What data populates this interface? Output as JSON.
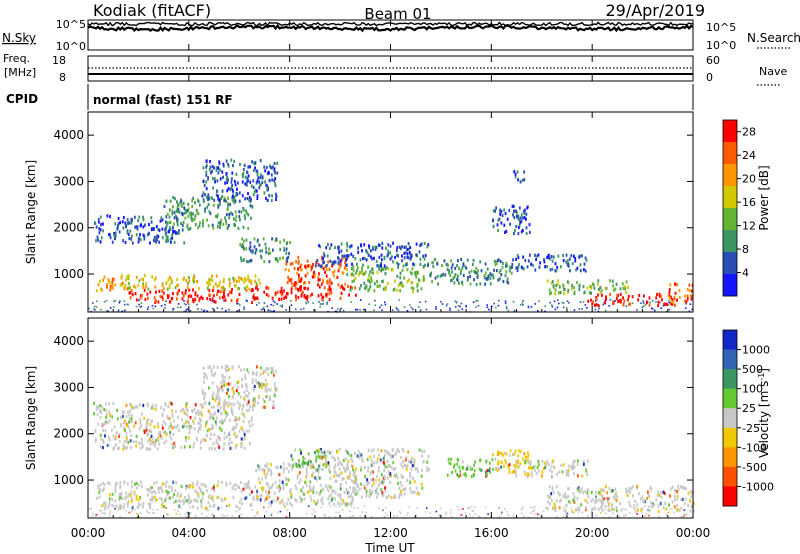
{
  "header": {
    "station": "Kodiak (fitACF)",
    "beam": "Beam 01",
    "date": "29/Apr/2019"
  },
  "strips": {
    "nsky": {
      "label": "N.Sky",
      "right_label": "N.Search",
      "left_ticks": [
        "10^5",
        "10^0"
      ],
      "right_ticks": [
        "10^5",
        "10^0"
      ]
    },
    "freq": {
      "label_line1": "Freq.",
      "label_line2": "[MHz]",
      "right_label": "Nave",
      "left_ticks": [
        "18",
        "8"
      ],
      "right_ticks": [
        "60",
        "0"
      ]
    },
    "cpid": {
      "label": "CPID",
      "text": "normal (fast) 151 RF"
    }
  },
  "chart_data": [
    {
      "type": "heatmap",
      "name": "power",
      "ylabel": "Slant Range [km]",
      "xlabel": "",
      "ylim": [
        180,
        4500
      ],
      "yticks": [
        1000,
        2000,
        3000,
        4000
      ],
      "xlim_hours": [
        0,
        24
      ],
      "xticks": [
        "00:00",
        "04:00",
        "08:00",
        "12:00",
        "16:00",
        "20:00",
        "00:00"
      ],
      "colorbar": {
        "label": "Power [dB]",
        "ticks": [
          "4",
          "8",
          "12",
          "16",
          "20",
          "24",
          "28"
        ],
        "range": [
          0,
          30
        ],
        "colors": [
          "#1414ff",
          "#2850b4",
          "#3c9664",
          "#64b432",
          "#d2c800",
          "#ff9600",
          "#ff5a00",
          "#ff0000"
        ]
      },
      "regions": [
        {
          "t0": 0.3,
          "t1": 1.7,
          "r0": 650,
          "r1": 1000,
          "level": 5
        },
        {
          "t0": 1.6,
          "t1": 6.6,
          "r0": 420,
          "r1": 700,
          "level": 7
        },
        {
          "t0": 1.4,
          "t1": 6.8,
          "r0": 700,
          "r1": 1000,
          "level": 4
        },
        {
          "t0": 6.6,
          "t1": 10.6,
          "r0": 480,
          "r1": 780,
          "level": 7
        },
        {
          "t0": 7.8,
          "t1": 10.2,
          "r0": 780,
          "r1": 1400,
          "level": 6
        },
        {
          "t0": 10.2,
          "t1": 13.3,
          "r0": 650,
          "r1": 1200,
          "level": 3
        },
        {
          "t0": 13.5,
          "t1": 16.8,
          "r0": 800,
          "r1": 1350,
          "level": 2
        },
        {
          "t0": 16.8,
          "t1": 19.8,
          "r0": 1100,
          "r1": 1450,
          "level": 1
        },
        {
          "t0": 19.8,
          "t1": 23.4,
          "r0": 350,
          "r1": 600,
          "level": 7
        },
        {
          "t0": 18.2,
          "t1": 21.4,
          "r0": 600,
          "r1": 900,
          "level": 3
        },
        {
          "t0": 23.0,
          "t1": 24.0,
          "r0": 420,
          "r1": 820,
          "level": 6
        },
        {
          "t0": 0.2,
          "t1": 3.8,
          "r0": 1700,
          "r1": 2300,
          "level": 1
        },
        {
          "t0": 3.0,
          "t1": 6.5,
          "r0": 2000,
          "r1": 2700,
          "level": 2
        },
        {
          "t0": 6.0,
          "t1": 8.0,
          "r0": 1300,
          "r1": 1800,
          "level": 2
        },
        {
          "t0": 4.5,
          "t1": 7.5,
          "r0": 2600,
          "r1": 3500,
          "level": 1
        },
        {
          "t0": 9.0,
          "t1": 13.5,
          "r0": 1200,
          "r1": 1700,
          "level": 1
        },
        {
          "t0": 16.0,
          "t1": 17.5,
          "r0": 1900,
          "r1": 2500,
          "level": 1
        },
        {
          "t0": 16.8,
          "t1": 17.3,
          "r0": 3000,
          "r1": 3250,
          "level": 1
        }
      ]
    },
    {
      "type": "heatmap",
      "name": "velocity",
      "ylabel": "Slant Range [km]",
      "xlabel": "Time UT",
      "ylim": [
        180,
        4500
      ],
      "yticks": [
        1000,
        2000,
        3000,
        4000
      ],
      "xlim_hours": [
        0,
        24
      ],
      "xticks": [
        "00:00",
        "04:00",
        "08:00",
        "12:00",
        "16:00",
        "20:00",
        "00:00"
      ],
      "colorbar": {
        "label": "Velocity [m s^-1]",
        "ticks": [
          "1000",
          "500",
          "100",
          "25",
          "-25",
          "-100",
          "-500",
          "-1000"
        ],
        "colors": [
          "#1428c8",
          "#3264b4",
          "#3c9664",
          "#64c832",
          "#c8c8c8",
          "#f0c800",
          "#ff9600",
          "#ff5000",
          "#ff0000"
        ]
      },
      "regions": [
        {
          "t0": 0.3,
          "t1": 6.6,
          "r0": 420,
          "r1": 1000,
          "level": 4
        },
        {
          "t0": 6.6,
          "t1": 10.6,
          "r0": 480,
          "r1": 1400,
          "level": 4
        },
        {
          "t0": 8.0,
          "t1": 9.6,
          "r0": 1300,
          "r1": 1700,
          "level": 3
        },
        {
          "t0": 10.2,
          "t1": 13.3,
          "r0": 650,
          "r1": 1200,
          "level": 4
        },
        {
          "t0": 14.2,
          "t1": 16.2,
          "r0": 1100,
          "r1": 1500,
          "level": 3
        },
        {
          "t0": 16.0,
          "t1": 17.6,
          "r0": 1200,
          "r1": 1700,
          "level": 5
        },
        {
          "t0": 16.8,
          "t1": 19.8,
          "r0": 1100,
          "r1": 1450,
          "level": 4
        },
        {
          "t0": 18.2,
          "t1": 24.0,
          "r0": 350,
          "r1": 900,
          "level": 4
        },
        {
          "t0": 0.2,
          "t1": 6.5,
          "r0": 1700,
          "r1": 2700,
          "level": 4
        },
        {
          "t0": 4.5,
          "t1": 7.5,
          "r0": 2600,
          "r1": 3500,
          "level": 4
        },
        {
          "t0": 9.0,
          "t1": 13.5,
          "r0": 1200,
          "r1": 1700,
          "level": 4
        }
      ]
    }
  ]
}
